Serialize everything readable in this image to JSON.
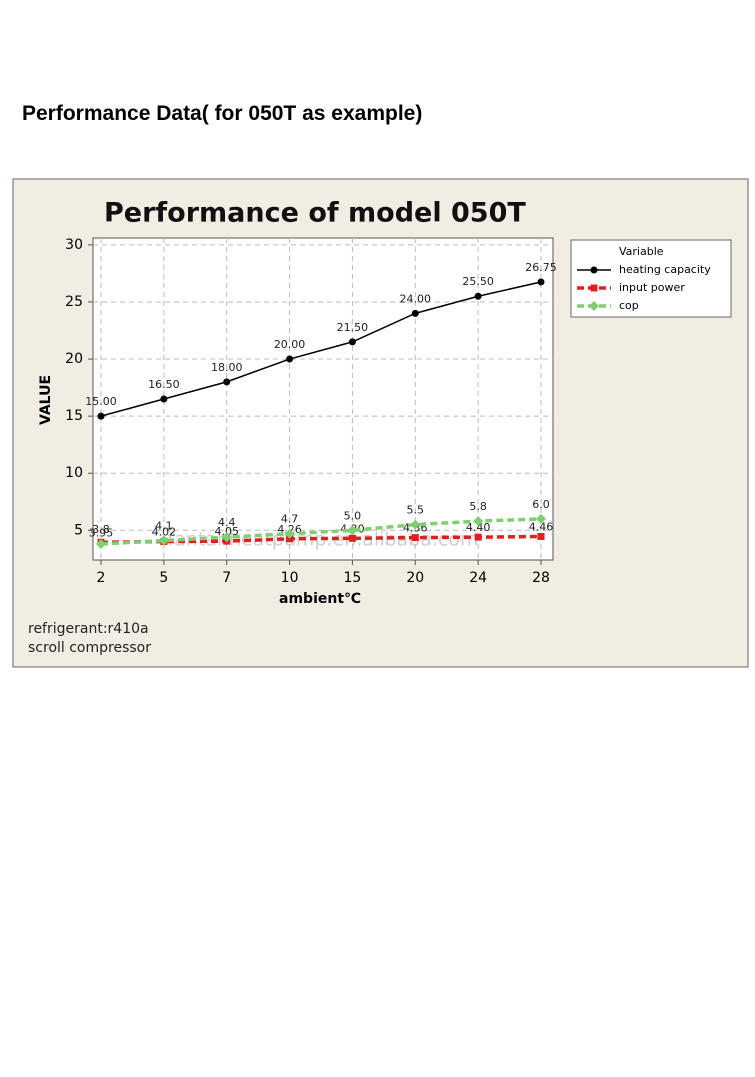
{
  "heading": "Performance Data( for  050T as example)",
  "chart_data": {
    "type": "line",
    "title": "Performance of model 050T",
    "y_label": "VALUE",
    "x_label": "ambient℃",
    "categories": [
      "2",
      "5",
      "7",
      "10",
      "15",
      "20",
      "24",
      "28"
    ],
    "series": [
      {
        "name": "heating capacity",
        "color": "#000000",
        "marker": "circle",
        "style": "solid",
        "values": [
          15,
          16.5,
          18,
          20,
          21.5,
          24,
          25.5,
          26.75
        ],
        "value_labels": [
          "15.00",
          "16.50",
          "18.00",
          "20.00",
          "21.50",
          "24.00",
          "25.50",
          "26.75"
        ]
      },
      {
        "name": "input power",
        "color": "#e02020",
        "marker": "square",
        "style": "dashed",
        "values": [
          3.95,
          4.02,
          4.05,
          4.26,
          4.3,
          4.36,
          4.4,
          4.46
        ],
        "value_labels": [
          "3.95",
          "4.02",
          "4.05",
          "4.26",
          "4.30",
          "4.36",
          "4.40",
          "4.46"
        ]
      },
      {
        "name": "cop",
        "color": "#7fcf6f",
        "marker": "diamond",
        "style": "dashed",
        "values": [
          3.8,
          4.1,
          4.4,
          4.7,
          5,
          5.5,
          5.8,
          6
        ],
        "value_labels": [
          "3.8",
          "4.1",
          "4.4",
          "4.7",
          "5.0",
          "5.5",
          "5.8",
          "6.0"
        ]
      }
    ],
    "ylim": [
      2.4,
      30.6
    ],
    "yticks": [
      5,
      10,
      15,
      20,
      25,
      30
    ],
    "grid": true,
    "legend_title": "Variable",
    "legend": "right",
    "watermark": "fantanheatpump.en.alibaba.com",
    "notes": [
      "refrigerant:r410a",
      "scroll compressor"
    ]
  }
}
